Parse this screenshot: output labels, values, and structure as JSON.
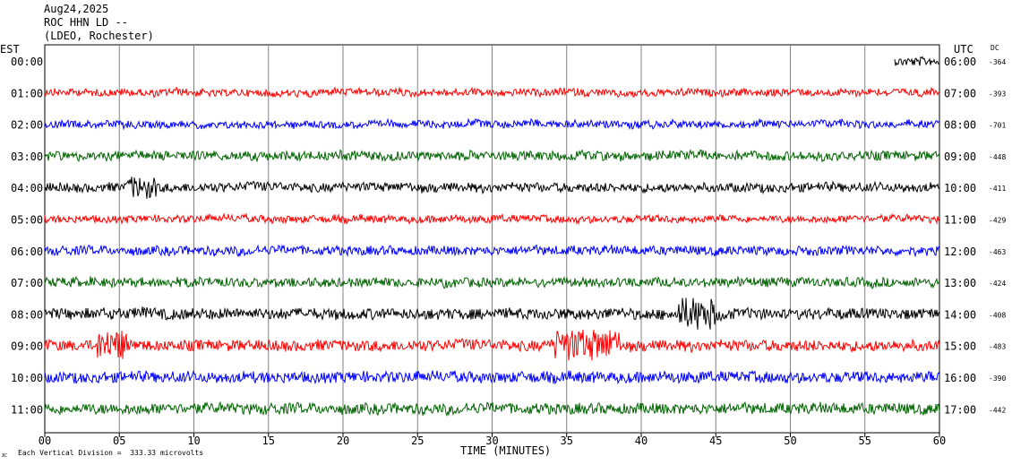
{
  "header": {
    "date": "Aug24,2025",
    "station": "ROC HHN LD --",
    "network": "(LDEO, Rochester)"
  },
  "footer": {
    "xlabel": "TIME (MINUTES)",
    "scale_note": "Each Vertical Division =  333.33 microvolts",
    "corner_mark": "ᴊᴄ"
  },
  "chart_data": {
    "type": "line",
    "title": "",
    "xlabel": "TIME (MINUTES)",
    "ylabel_left": "EST",
    "ylabel_right": "UTC",
    "dc_label": "DC",
    "xlim": [
      0,
      60
    ],
    "x_ticks": [
      "00",
      "05",
      "10",
      "15",
      "20",
      "25",
      "30",
      "35",
      "40",
      "45",
      "50",
      "55",
      "60"
    ],
    "grid": "vertical every 5 minutes",
    "traces": [
      {
        "est": "00:00",
        "utc": "06:00",
        "dc": "-364",
        "color": "#000000",
        "start_min": 57,
        "noise": 5
      },
      {
        "est": "01:00",
        "utc": "07:00",
        "dc": "-393",
        "color": "#ff0000",
        "start_min": 0,
        "noise": 4
      },
      {
        "est": "02:00",
        "utc": "08:00",
        "dc": "-701",
        "color": "#0000ff",
        "start_min": 0,
        "noise": 4
      },
      {
        "est": "03:00",
        "utc": "09:00",
        "dc": "-448",
        "color": "#006400",
        "start_min": 0,
        "noise": 5
      },
      {
        "est": "04:00",
        "utc": "10:00",
        "dc": "-411",
        "color": "#000000",
        "start_min": 0,
        "noise": 5
      },
      {
        "est": "05:00",
        "utc": "11:00",
        "dc": "-429",
        "color": "#ff0000",
        "start_min": 0,
        "noise": 4
      },
      {
        "est": "06:00",
        "utc": "12:00",
        "dc": "-463",
        "color": "#0000ff",
        "start_min": 0,
        "noise": 5
      },
      {
        "est": "07:00",
        "utc": "13:00",
        "dc": "-424",
        "color": "#006400",
        "start_min": 0,
        "noise": 5
      },
      {
        "est": "08:00",
        "utc": "14:00",
        "dc": "-408",
        "color": "#000000",
        "start_min": 0,
        "noise": 6
      },
      {
        "est": "09:00",
        "utc": "15:00",
        "dc": "-483",
        "color": "#ff0000",
        "start_min": 0,
        "noise": 6
      },
      {
        "est": "10:00",
        "utc": "16:00",
        "dc": "-390",
        "color": "#0000ff",
        "start_min": 0,
        "noise": 6
      },
      {
        "est": "11:00",
        "utc": "17:00",
        "dc": "-442",
        "color": "#006400",
        "start_min": 0,
        "noise": 6
      }
    ]
  }
}
